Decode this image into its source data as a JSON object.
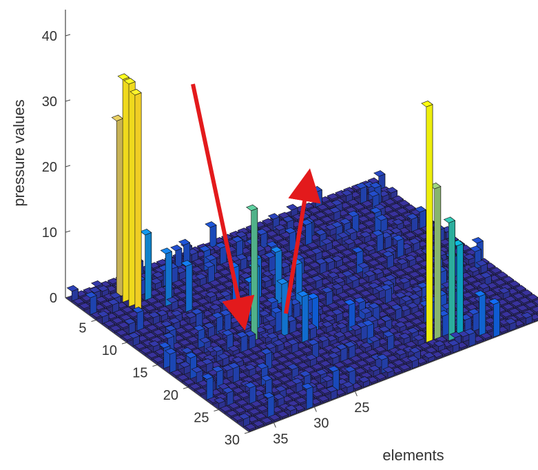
{
  "chart_data": {
    "type": "bar3d",
    "ylabel": "pressure values",
    "xlabel": "elements",
    "zlim": [
      0,
      45
    ],
    "z_ticks": [
      "0",
      "10",
      "20",
      "30",
      "40"
    ],
    "row_ticks": [
      "5",
      "10",
      "15",
      "20",
      "25",
      "30"
    ],
    "col_ticks": [
      "25",
      "30",
      "35"
    ],
    "rows": 30,
    "cols": 38,
    "colormap": [
      "#352a87",
      "#0f5cdd",
      "#1481d6",
      "#06a4ca",
      "#2eb7a4",
      "#87bf77",
      "#d1bb59",
      "#fec832",
      "#f9fb0e"
    ],
    "arrow_color": "#e31a1c",
    "tall_bars": [
      {
        "row": 3,
        "col": 33,
        "value": 34
      },
      {
        "row": 4,
        "col": 33,
        "value": 34
      },
      {
        "row": 5,
        "col": 33,
        "value": 33
      },
      {
        "row": 2,
        "col": 33,
        "value": 27
      },
      {
        "row": 4,
        "col": 31,
        "value": 10
      },
      {
        "row": 6,
        "col": 30,
        "value": 8
      },
      {
        "row": 8,
        "col": 29,
        "value": 7
      },
      {
        "row": 16,
        "col": 27,
        "value": 20
      },
      {
        "row": 15,
        "col": 26,
        "value": 10
      },
      {
        "row": 17,
        "col": 24,
        "value": 8
      },
      {
        "row": 19,
        "col": 23,
        "value": 7
      },
      {
        "row": 13,
        "col": 25,
        "value": 6
      },
      {
        "row": 26,
        "col": 13,
        "value": 36
      },
      {
        "row": 26,
        "col": 12,
        "value": 23
      },
      {
        "row": 27,
        "col": 11,
        "value": 18
      },
      {
        "row": 27,
        "col": 10,
        "value": 14
      },
      {
        "row": 28,
        "col": 8,
        "value": 6
      },
      {
        "row": 29,
        "col": 7,
        "value": 5
      },
      {
        "row": 12,
        "col": 21,
        "value": 8
      },
      {
        "row": 14,
        "col": 20,
        "value": 7
      },
      {
        "row": 10,
        "col": 22,
        "value": 6
      },
      {
        "row": 18,
        "col": 21,
        "value": 5
      },
      {
        "row": 9,
        "col": 24,
        "value": 5
      },
      {
        "row": 20,
        "col": 18,
        "value": 4
      }
    ]
  }
}
